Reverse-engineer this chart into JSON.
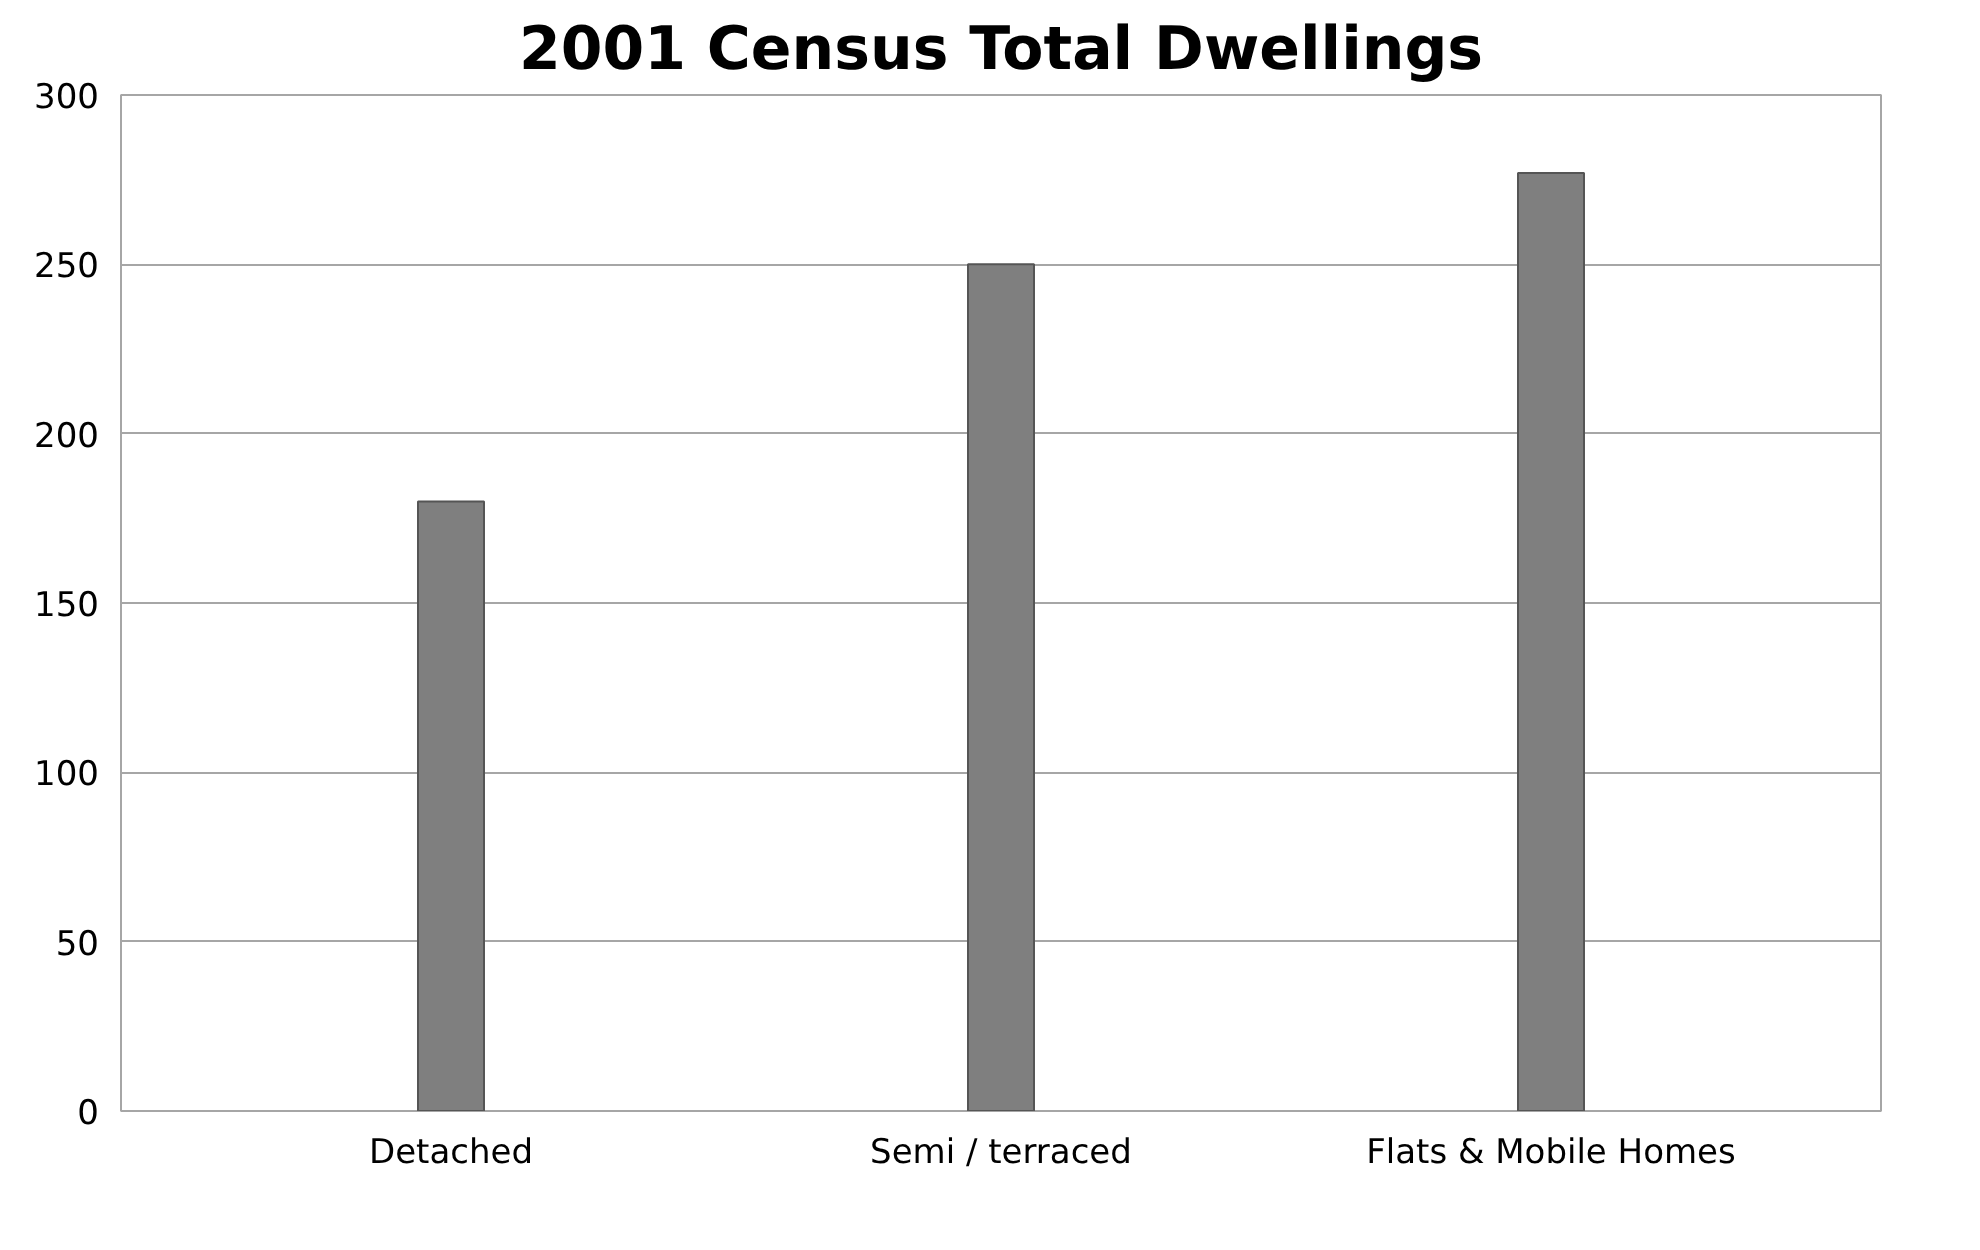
{
  "chart_data": {
    "type": "bar",
    "title": "2001 Census Total Dwellings",
    "categories": [
      "Detached",
      "Semi / terraced",
      "Flats & Mobile Homes"
    ],
    "values": [
      180,
      250,
      277
    ],
    "color": "#7f7f7f",
    "ylim": [
      0,
      300
    ],
    "yticks": [
      0,
      50,
      100,
      150,
      200,
      250,
      300
    ],
    "grid": "y"
  }
}
